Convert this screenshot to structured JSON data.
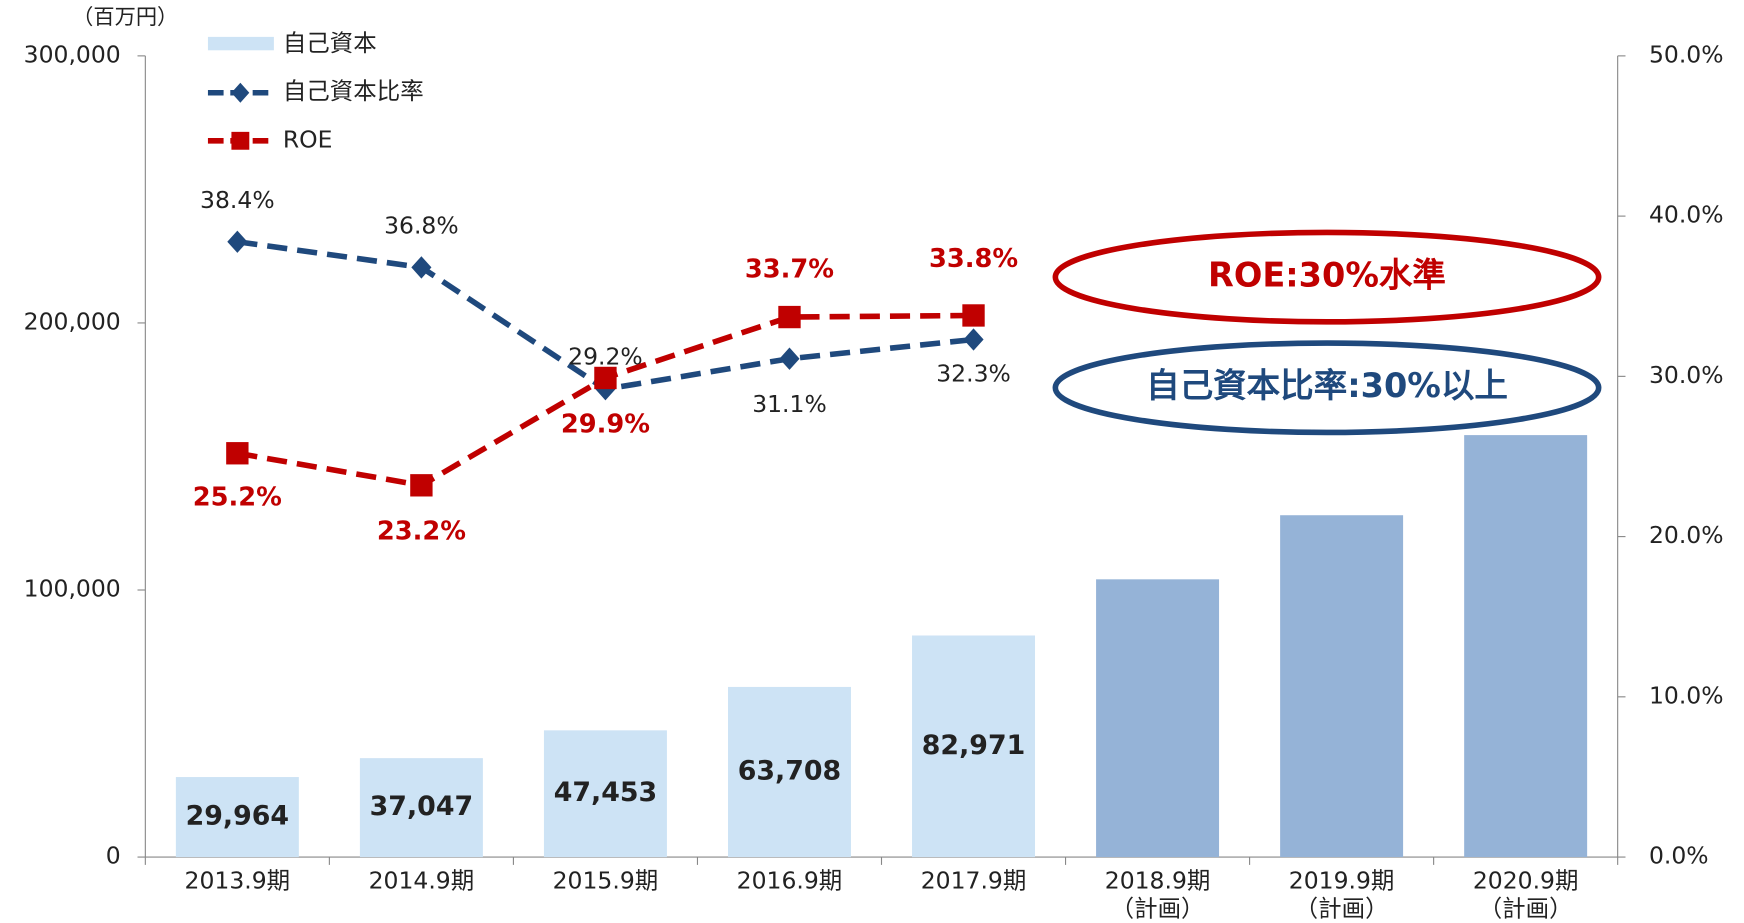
{
  "chart_data": {
    "type": "bar_line",
    "unit_label": "（百万円）",
    "categories": [
      "2013.9期",
      "2014.9期",
      "2015.9期",
      "2016.9期",
      "2017.9期",
      "2018.9期\n（計画）",
      "2019.9期\n（計画）",
      "2020.9期\n（計画）"
    ],
    "bars": {
      "name": "自己資本",
      "values": [
        29964,
        37047,
        47453,
        63708,
        82971,
        104000,
        128000,
        158000
      ],
      "value_labels": [
        "29,964",
        "37,047",
        "47,453",
        "63,708",
        "82,971",
        null,
        null,
        null
      ],
      "colors": [
        "#cde3f5",
        "#cde3f5",
        "#cde3f5",
        "#cde3f5",
        "#cde3f5",
        "#95b3d7",
        "#95b3d7",
        "#95b3d7"
      ]
    },
    "series": [
      {
        "name": "自己資本比率",
        "color": "#1f497d",
        "marker": "diamond",
        "axis": "y2",
        "values": [
          38.4,
          36.8,
          29.2,
          31.1,
          32.3,
          null,
          null,
          null
        ],
        "value_labels": [
          "38.4%",
          "36.8%",
          "29.2%",
          "31.1%",
          "32.3%",
          null,
          null,
          null
        ]
      },
      {
        "name": "ROE",
        "color": "#c00000",
        "marker": "square",
        "axis": "y2",
        "values": [
          25.2,
          23.2,
          29.9,
          33.7,
          33.8,
          null,
          null,
          null
        ],
        "value_labels": [
          "25.2%",
          "23.2%",
          "29.9%",
          "33.7%",
          "33.8%",
          null,
          null,
          null
        ]
      }
    ],
    "ylim": [
      0,
      300000
    ],
    "yticks": [
      0,
      {
        "value": 100000,
        "label": "100,000"
      },
      {
        "value": 200000,
        "label": "200,000"
      },
      {
        "value": 300000,
        "label": "300,000"
      }
    ],
    "y2lim": [
      0,
      50
    ],
    "y2ticks": [
      {
        "value": 0,
        "label": "0.0%"
      },
      {
        "value": 10,
        "label": "10.0%"
      },
      {
        "value": 20,
        "label": "20.0%"
      },
      {
        "value": 30,
        "label": "30.0%"
      },
      {
        "value": 40,
        "label": "40.0%"
      },
      {
        "value": 50,
        "label": "50.0%"
      }
    ],
    "annotations": [
      {
        "text": "ROE:30%水準",
        "color": "#c00000"
      },
      {
        "text": "自己資本比率:30%以上",
        "color": "#1f497d"
      }
    ]
  }
}
